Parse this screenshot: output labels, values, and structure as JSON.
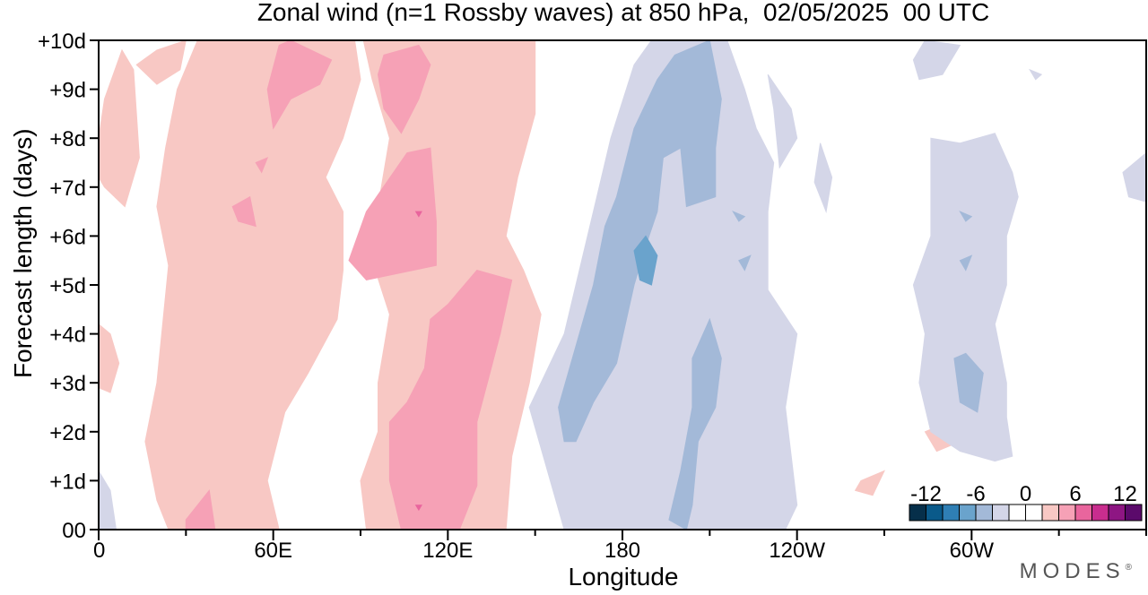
{
  "chart_data": {
    "type": "heatmap",
    "title": "Zonal wind (n=1 Rossby waves) at 850 hPa,  02/05/2025  00 UTC",
    "xlabel": "Longitude",
    "ylabel": "Forecast length (days)",
    "x_ticks": [
      "0",
      "60E",
      "120E",
      "180",
      "120W",
      "60W"
    ],
    "x_tick_values": [
      0,
      60,
      120,
      180,
      240,
      300
    ],
    "xlim": [
      0,
      360
    ],
    "y_ticks": [
      "00",
      "+1d",
      "+2d",
      "+3d",
      "+4d",
      "+5d",
      "+6d",
      "+7d",
      "+8d",
      "+9d",
      "+10d"
    ],
    "ylim": [
      0,
      10
    ],
    "colorbar": {
      "labels": [
        "-12",
        "-6",
        "0",
        "6",
        "12"
      ],
      "colors": [
        "#062f4a",
        "#0a5a8a",
        "#2f7fb5",
        "#6aa3cc",
        "#a3b9d8",
        "#d4d6e8",
        "#ffffff",
        "#ffffff",
        "#f8c8c4",
        "#f6a1b6",
        "#e9659d",
        "#c92d8e",
        "#8e1683",
        "#5b0a6b"
      ]
    },
    "contours": [
      {
        "level": "pos1",
        "color": "#f8c8c4",
        "polys": [
          [
            [
              0,
              8
            ],
            [
              2,
              8.8
            ],
            [
              8,
              9.8
            ],
            [
              12,
              9.4
            ],
            [
              14,
              7.6
            ],
            [
              9,
              6.6
            ],
            [
              2,
              7
            ],
            [
              0,
              7.2
            ]
          ],
          [
            [
              0,
              4.2
            ],
            [
              4,
              4
            ],
            [
              7,
              3.4
            ],
            [
              4,
              2.8
            ],
            [
              0,
              2.9
            ]
          ],
          [
            [
              24,
              0
            ],
            [
              20,
              0.6
            ],
            [
              16,
              1.8
            ],
            [
              20,
              3
            ],
            [
              22,
              4.2
            ],
            [
              24,
              5.4
            ],
            [
              20,
              6.6
            ],
            [
              23,
              7.8
            ],
            [
              27,
              9
            ],
            [
              34,
              10
            ],
            [
              88,
              10
            ],
            [
              90,
              9.2
            ],
            [
              84,
              8
            ],
            [
              78,
              7.2
            ],
            [
              84,
              6.5
            ],
            [
              84,
              5.3
            ],
            [
              82,
              4.3
            ],
            [
              72,
              3.2
            ],
            [
              64,
              2.4
            ],
            [
              58,
              1
            ],
            [
              62,
              0
            ]
          ],
          [
            [
              91,
              10
            ],
            [
              150,
              10
            ],
            [
              150,
              8.5
            ],
            [
              144,
              7.2
            ],
            [
              140,
              6
            ],
            [
              146,
              5.3
            ],
            [
              152,
              4.4
            ],
            [
              148,
              3
            ],
            [
              142,
              1.5
            ],
            [
              140,
              0
            ],
            [
              92,
              0
            ],
            [
              90,
              1
            ],
            [
              96,
              2
            ],
            [
              96,
              3
            ],
            [
              100,
              4.4
            ],
            [
              94,
              5.5
            ],
            [
              96,
              6.6
            ],
            [
              100,
              8
            ],
            [
              94,
              9.2
            ]
          ],
          [
            [
              13,
              9.5
            ],
            [
              20,
              9.8
            ],
            [
              30,
              10
            ],
            [
              28,
              9.4
            ],
            [
              20,
              9.1
            ]
          ],
          [
            [
              294,
              6.4
            ],
            [
              298,
              7.2
            ],
            [
              302,
              6.9
            ],
            [
              300,
              5.9
            ],
            [
              296,
              5.7
            ]
          ],
          [
            [
              284,
              2
            ],
            [
              292,
              2.2
            ],
            [
              296,
              1.8
            ],
            [
              288,
              1.6
            ]
          ],
          [
            [
              262,
              1
            ],
            [
              270,
              1.2
            ],
            [
              266,
              0.7
            ],
            [
              260,
              0.8
            ]
          ],
          [
            [
              289,
              3
            ],
            [
              295,
              3.1
            ],
            [
              294,
              2.8
            ]
          ],
          [
            [
              296,
              5
            ],
            [
              300,
              5.1
            ],
            [
              298,
              4.8
            ]
          ],
          [
            [
              196,
              8.3
            ],
            [
              199,
              8.2
            ],
            [
              198,
              7.9
            ]
          ]
        ]
      },
      {
        "level": "pos2",
        "color": "#f6a1b6",
        "polys": [
          [
            [
              34,
              0.5
            ],
            [
              38,
              0.8
            ],
            [
              40,
              0
            ],
            [
              30,
              0
            ],
            [
              30,
              0.2
            ]
          ],
          [
            [
              62,
              9.9
            ],
            [
              66,
              10
            ],
            [
              80,
              9.6
            ],
            [
              76,
              9.1
            ],
            [
              66,
              8.8
            ],
            [
              60,
              8.2
            ],
            [
              58,
              9
            ]
          ],
          [
            [
              98,
              9.7
            ],
            [
              110,
              9.9
            ],
            [
              114,
              9.5
            ],
            [
              110,
              8.8
            ],
            [
              104,
              8.1
            ],
            [
              98,
              8.6
            ],
            [
              96,
              9.3
            ]
          ],
          [
            [
              92,
              6.5
            ],
            [
              106,
              7.7
            ],
            [
              114,
              7.8
            ],
            [
              116,
              6.3
            ],
            [
              116,
              5.4
            ],
            [
              92,
              5.1
            ],
            [
              86,
              5.5
            ]
          ],
          [
            [
              46,
              6.6
            ],
            [
              52,
              6.8
            ],
            [
              54,
              6.2
            ],
            [
              48,
              6.3
            ]
          ],
          [
            [
              54,
              7.5
            ],
            [
              58,
              7.6
            ],
            [
              56,
              7.3
            ]
          ],
          [
            [
              114,
              4.3
            ],
            [
              120,
              4.6
            ],
            [
              130,
              5.3
            ],
            [
              142,
              5.1
            ],
            [
              138,
              4
            ],
            [
              134,
              3.1
            ],
            [
              130,
              2.2
            ],
            [
              130,
              0.9
            ],
            [
              124,
              0
            ],
            [
              104,
              0
            ],
            [
              100,
              1
            ],
            [
              100,
              2.2
            ],
            [
              106,
              2.6
            ],
            [
              112,
              3.3
            ]
          ]
        ]
      },
      {
        "level": "pos3",
        "color": "#e9659d",
        "polys": [
          [
            [
              109,
              6.5
            ],
            [
              111,
              6.5
            ],
            [
              110,
              6.4
            ]
          ],
          [
            [
              109,
              0.5
            ],
            [
              111,
              0.5
            ],
            [
              110,
              0.4
            ]
          ]
        ]
      },
      {
        "level": "neg1",
        "color": "#d4d6e8",
        "polys": [
          [
            [
              0,
              1.2
            ],
            [
              4,
              0.8
            ],
            [
              6,
              0
            ],
            [
              0,
              0
            ]
          ],
          [
            [
              160,
              0
            ],
            [
              148,
              2.5
            ],
            [
              160,
              4
            ],
            [
              164,
              5
            ],
            [
              170,
              6.5
            ],
            [
              176,
              8
            ],
            [
              184,
              9.5
            ],
            [
              190,
              10
            ],
            [
              216,
              10
            ],
            [
              222,
              9
            ],
            [
              226,
              8.2
            ],
            [
              232,
              7.5
            ],
            [
              230,
              6.5
            ],
            [
              230,
              4.9
            ],
            [
              240,
              4
            ],
            [
              236,
              2.5
            ],
            [
              238,
              1.5
            ],
            [
              240,
              0.5
            ],
            [
              236,
              0
            ]
          ],
          [
            [
              230,
              9.3
            ],
            [
              238,
              8.6
            ],
            [
              240,
              8
            ],
            [
              234,
              7.4
            ],
            [
              232,
              8.6
            ]
          ],
          [
            [
              248,
              7.9
            ],
            [
              252,
              7.2
            ],
            [
              250,
              6.5
            ],
            [
              246,
              7.1
            ]
          ],
          [
            [
              282,
              9.2
            ],
            [
              290,
              9.3
            ],
            [
              296,
              9.9
            ],
            [
              284,
              10
            ],
            [
              280,
              9.6
            ]
          ],
          [
            [
              286,
              8
            ],
            [
              296,
              7.9
            ],
            [
              308,
              8.1
            ],
            [
              314,
              7.3
            ],
            [
              316,
              6.8
            ],
            [
              312,
              6
            ],
            [
              312,
              5
            ],
            [
              308,
              4.2
            ],
            [
              312,
              3
            ],
            [
              312,
              2.3
            ],
            [
              314,
              1.5
            ],
            [
              308,
              1.4
            ],
            [
              296,
              1.6
            ],
            [
              286,
              2
            ],
            [
              282,
              3
            ],
            [
              284,
              4
            ],
            [
              280,
              5
            ],
            [
              286,
              6
            ]
          ],
          [
            [
              290,
              7.5
            ],
            [
              300,
              7.8
            ],
            [
              302,
              7
            ],
            [
              296,
              6.8
            ]
          ],
          [
            [
              352,
              7.3
            ],
            [
              360,
              7.7
            ],
            [
              360,
              6.7
            ],
            [
              354,
              6.8
            ]
          ],
          [
            [
              320,
              9.4
            ],
            [
              324,
              9.3
            ],
            [
              322,
              9.2
            ]
          ]
        ]
      },
      {
        "level": "neg2",
        "color": "#a3b9d8",
        "polys": [
          [
            [
              178,
              6.8
            ],
            [
              184,
              8.2
            ],
            [
              192,
              9.2
            ],
            [
              198,
              9.7
            ],
            [
              210,
              10
            ],
            [
              214,
              8.8
            ],
            [
              212,
              7.8
            ],
            [
              212,
              6.8
            ],
            [
              202,
              6.6
            ],
            [
              200,
              7.8
            ],
            [
              194,
              7.6
            ],
            [
              192,
              6.5
            ],
            [
              188,
              5.8
            ],
            [
              184,
              5
            ],
            [
              178,
              3.4
            ],
            [
              170,
              2.6
            ],
            [
              164,
              1.8
            ],
            [
              160,
              1.8
            ],
            [
              158,
              2.5
            ],
            [
              170,
              5
            ],
            [
              174,
              6.2
            ]
          ],
          [
            [
              196,
              0.2
            ],
            [
              200,
              1.2
            ],
            [
              204,
              2.5
            ],
            [
              204,
              3.5
            ],
            [
              210,
              4.3
            ],
            [
              214,
              3.5
            ],
            [
              212,
              2.5
            ],
            [
              206,
              1.8
            ],
            [
              204,
              0.5
            ],
            [
              202,
              0
            ]
          ],
          [
            [
              294,
              3.5
            ],
            [
              298,
              3.6
            ],
            [
              304,
              3.2
            ],
            [
              302,
              2.4
            ],
            [
              296,
              2.6
            ]
          ],
          [
            [
              296,
              6.5
            ],
            [
              300,
              6.4
            ],
            [
              298,
              6.3
            ]
          ],
          [
            [
              296,
              5.5
            ],
            [
              300,
              5.6
            ],
            [
              298,
              5.3
            ]
          ],
          [
            [
              218,
              6.5
            ],
            [
              222,
              6.4
            ],
            [
              220,
              6.3
            ]
          ],
          [
            [
              220,
              5.5
            ],
            [
              224,
              5.6
            ],
            [
              222,
              5.3
            ]
          ]
        ]
      },
      {
        "level": "neg3",
        "color": "#6aa3cc",
        "polys": [
          [
            [
              184,
              5.7
            ],
            [
              188,
              6
            ],
            [
              192,
              5.6
            ],
            [
              190,
              5
            ],
            [
              186,
              5.1
            ]
          ]
        ]
      }
    ],
    "grid": false
  },
  "logo_text": "MODES",
  "logo_mark": "®"
}
